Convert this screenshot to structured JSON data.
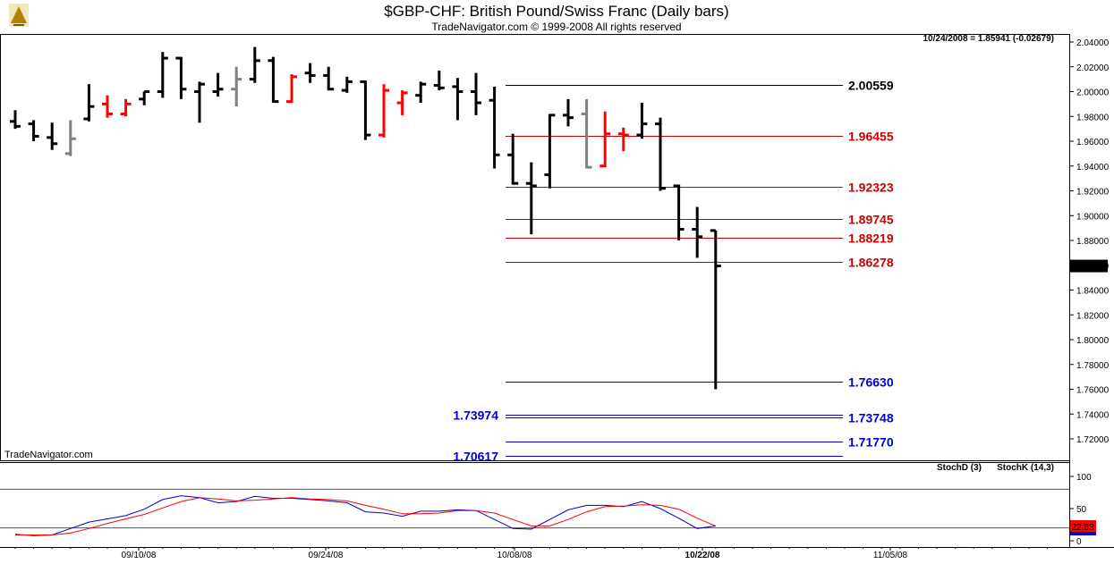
{
  "header": {
    "title": "$GBP-CHF:  British Pound/Swiss Franc  (Daily bars)",
    "copyright": "TradeNavigator.com © 1999-2008 All rights reserved",
    "readout": "10/24/2008 = 1.85941 (-0.02679)",
    "watermark": "TradeNavigator.com",
    "last_price_tag": "1.85941"
  },
  "colors": {
    "bar_default": "#000000",
    "bar_up": "#ff0000",
    "bar_gray": "#808080",
    "bar_green_tick": "#00cc00",
    "fib_red": "#cc0000",
    "fib_blue": "#0000cc",
    "stoch_d": "#ff0000",
    "stoch_k": "#0000cc",
    "stoch_tag_bg": "#ff0000"
  },
  "chart_data": [
    {
      "type": "ohlc",
      "y_axis_ticks": [
        "2.04000",
        "2.02000",
        "2.00000",
        "1.98000",
        "1.96000",
        "1.94000",
        "1.92000",
        "1.90000",
        "1.88000",
        "1.86000",
        "1.84000",
        "1.82000",
        "1.80000",
        "1.78000",
        "1.76000",
        "1.74000",
        "1.72000"
      ],
      "ylim": [
        1.705,
        2.045
      ],
      "x_axis_ticks": [
        "09/10/08",
        "09/24/08",
        "10/08/08",
        "11/05/08"
      ],
      "highlighted_x_tick": "10/22/08",
      "bars": [
        {
          "d": "08/29",
          "o": 1.976,
          "h": 1.985,
          "l": 1.97,
          "c": 1.972,
          "col": "black"
        },
        {
          "d": "09/01",
          "o": 1.974,
          "h": 1.977,
          "l": 1.96,
          "c": 1.964,
          "col": "black"
        },
        {
          "d": "09/02",
          "o": 1.963,
          "h": 1.975,
          "l": 1.953,
          "c": 1.958,
          "col": "black"
        },
        {
          "d": "09/03",
          "o": 1.95,
          "h": 1.977,
          "l": 1.948,
          "c": 1.962,
          "col": "gray"
        },
        {
          "d": "09/04",
          "o": 1.978,
          "h": 2.006,
          "l": 1.976,
          "c": 1.988,
          "col": "black"
        },
        {
          "d": "09/05",
          "o": 1.99,
          "h": 1.997,
          "l": 1.979,
          "c": 1.982,
          "col": "red"
        },
        {
          "d": "09/08",
          "o": 1.982,
          "h": 1.994,
          "l": 1.98,
          "c": 1.99,
          "col": "red"
        },
        {
          "d": "09/09",
          "o": 1.994,
          "h": 2.0,
          "l": 1.989,
          "c": 2.0,
          "col": "black"
        },
        {
          "d": "09/10",
          "o": 2.0,
          "h": 2.032,
          "l": 1.995,
          "c": 2.027,
          "col": "black"
        },
        {
          "d": "09/11",
          "o": 2.027,
          "h": 2.028,
          "l": 1.994,
          "c": 2.002,
          "col": "black"
        },
        {
          "d": "09/12",
          "o": 2.0,
          "h": 2.008,
          "l": 1.975,
          "c": 2.006,
          "col": "black"
        },
        {
          "d": "09/15",
          "o": 2.0,
          "h": 2.015,
          "l": 1.996,
          "c": 2.002,
          "col": "black"
        },
        {
          "d": "09/16",
          "o": 2.002,
          "h": 2.02,
          "l": 1.988,
          "c": 2.01,
          "col": "gray"
        },
        {
          "d": "09/17",
          "o": 2.01,
          "h": 2.036,
          "l": 2.007,
          "c": 2.025,
          "col": "black"
        },
        {
          "d": "09/18",
          "o": 2.025,
          "h": 2.028,
          "l": 1.991,
          "c": 1.992,
          "col": "black"
        },
        {
          "d": "09/19",
          "o": 1.992,
          "h": 2.014,
          "l": 1.991,
          "c": 2.012,
          "col": "red"
        },
        {
          "d": "09/22",
          "o": 2.015,
          "h": 2.023,
          "l": 2.007,
          "c": 2.013,
          "col": "black"
        },
        {
          "d": "09/23",
          "o": 2.013,
          "h": 2.02,
          "l": 2.001,
          "c": 2.002,
          "col": "black"
        },
        {
          "d": "09/24",
          "o": 2.001,
          "h": 2.012,
          "l": 1.999,
          "c": 2.008,
          "col": "black"
        },
        {
          "d": "09/25",
          "o": 2.008,
          "h": 2.009,
          "l": 1.961,
          "c": 1.965,
          "col": "black"
        },
        {
          "d": "09/26",
          "o": 1.965,
          "h": 2.006,
          "l": 1.963,
          "c": 2.001,
          "col": "red"
        },
        {
          "d": "09/29",
          "o": 1.991,
          "h": 2.001,
          "l": 1.981,
          "c": 1.999,
          "col": "red"
        },
        {
          "d": "09/30",
          "o": 1.997,
          "h": 2.008,
          "l": 1.991,
          "c": 2.006,
          "col": "black"
        },
        {
          "d": "10/01",
          "o": 2.005,
          "h": 2.017,
          "l": 2.001,
          "c": 2.003,
          "col": "black"
        },
        {
          "d": "10/02",
          "o": 2.004,
          "h": 2.011,
          "l": 1.977,
          "c": 2.0,
          "col": "black"
        },
        {
          "d": "10/03",
          "o": 2.0,
          "h": 2.015,
          "l": 1.981,
          "c": 1.991,
          "col": "black"
        },
        {
          "d": "10/06",
          "o": 1.993,
          "h": 2.004,
          "l": 1.938,
          "c": 1.949,
          "col": "black"
        },
        {
          "d": "10/07",
          "o": 1.949,
          "h": 1.966,
          "l": 1.925,
          "c": 1.926,
          "col": "black"
        },
        {
          "d": "10/08",
          "o": 1.926,
          "h": 1.943,
          "l": 1.885,
          "c": 1.924,
          "col": "black"
        },
        {
          "d": "10/09",
          "o": 1.933,
          "h": 1.982,
          "l": 1.922,
          "c": 1.981,
          "col": "black"
        },
        {
          "d": "10/10",
          "o": 1.981,
          "h": 1.994,
          "l": 1.972,
          "c": 1.979,
          "col": "black"
        },
        {
          "d": "10/13",
          "o": 1.982,
          "h": 1.994,
          "l": 1.938,
          "c": 1.939,
          "col": "gray"
        },
        {
          "d": "10/14",
          "o": 1.94,
          "h": 1.984,
          "l": 1.939,
          "c": 1.966,
          "col": "red"
        },
        {
          "d": "10/15",
          "o": 1.966,
          "h": 1.971,
          "l": 1.952,
          "c": 1.965,
          "col": "red"
        },
        {
          "d": "10/16",
          "o": 1.965,
          "h": 1.991,
          "l": 1.962,
          "c": 1.974,
          "col": "black"
        },
        {
          "d": "10/17",
          "o": 1.974,
          "h": 1.979,
          "l": 1.92,
          "c": 1.922,
          "col": "black"
        },
        {
          "d": "10/20",
          "o": 1.924,
          "h": 1.925,
          "l": 1.88,
          "c": 1.889,
          "col": "black"
        },
        {
          "d": "10/21",
          "o": 1.889,
          "h": 1.907,
          "l": 1.866,
          "c": 1.883,
          "col": "black"
        },
        {
          "d": "10/22",
          "o": 1.888,
          "h": 1.888,
          "l": 1.76,
          "c": 1.8594,
          "col": "black"
        }
      ],
      "retracement_levels": [
        {
          "value": "2.00559",
          "color": "black"
        },
        {
          "value": "1.96455",
          "color": "red"
        },
        {
          "value": "1.92323",
          "color": "red"
        },
        {
          "value": "1.89745",
          "color": "red"
        },
        {
          "value": "1.88219",
          "color": "red"
        },
        {
          "value": "1.86278",
          "color": "red"
        },
        {
          "value": "1.76630",
          "color": "blue"
        },
        {
          "value": "1.73974",
          "color": "blue",
          "side": "left"
        },
        {
          "value": "1.73748",
          "color": "blue"
        },
        {
          "value": "1.71770",
          "color": "blue"
        },
        {
          "value": "1.70617",
          "color": "blue",
          "side": "left"
        }
      ]
    },
    {
      "type": "line",
      "title_d": "StochD (3)",
      "title_k": "StochK (14,3)",
      "y_axis_ticks": [
        "100",
        "50",
        "0"
      ],
      "ylim": [
        0,
        100
      ],
      "reference_lines": [
        80,
        20
      ],
      "last_value_tag": "22.83",
      "series": [
        {
          "name": "StochK (14,3)",
          "color": "blue",
          "values": [
            10,
            8,
            9,
            19,
            29,
            34,
            39,
            49,
            64,
            70,
            67,
            59,
            61,
            69,
            66,
            66,
            64,
            62,
            59,
            45,
            43,
            38,
            46,
            46,
            48,
            47,
            33,
            19,
            18,
            33,
            48,
            55,
            55,
            53,
            61,
            50,
            35,
            19,
            23
          ]
        },
        {
          "name": "StochD (3)",
          "color": "red",
          "values": [
            9,
            9,
            9,
            12,
            19,
            27,
            34,
            41,
            51,
            61,
            67,
            65,
            62,
            63,
            65,
            67,
            65,
            64,
            62,
            55,
            49,
            42,
            42,
            43,
            47,
            47,
            43,
            33,
            23,
            23,
            33,
            45,
            53,
            54,
            56,
            55,
            49,
            35,
            23
          ]
        }
      ]
    }
  ]
}
